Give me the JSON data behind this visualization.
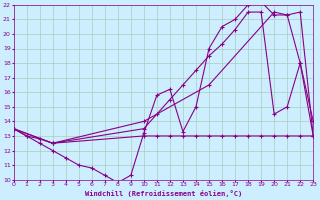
{
  "xlabel": "Windchill (Refroidissement éolien,°C)",
  "bg_color": "#cceeff",
  "grid_color": "#aaccbb",
  "line_color": "#880088",
  "xlim": [
    0,
    23
  ],
  "ylim": [
    10,
    22
  ],
  "xticks": [
    0,
    1,
    2,
    3,
    4,
    5,
    6,
    7,
    8,
    9,
    10,
    11,
    12,
    13,
    14,
    15,
    16,
    17,
    18,
    19,
    20,
    21,
    22,
    23
  ],
  "yticks": [
    10,
    11,
    12,
    13,
    14,
    15,
    16,
    17,
    18,
    19,
    20,
    21,
    22
  ],
  "lines": [
    {
      "x": [
        0,
        1,
        2,
        3,
        4,
        5,
        6,
        7,
        8,
        9,
        10,
        11,
        12,
        13,
        14,
        15,
        16,
        17,
        18,
        19,
        20,
        21,
        22,
        23
      ],
      "y": [
        13.5,
        13.0,
        12.5,
        12.0,
        11.5,
        11.0,
        10.8,
        10.3,
        9.8,
        10.3,
        13.2,
        15.8,
        16.2,
        13.3,
        15.0,
        19.0,
        20.5,
        21.0,
        22.0,
        22.2,
        21.3,
        21.3,
        18.0,
        13.0
      ]
    },
    {
      "x": [
        0,
        1,
        2,
        3,
        10,
        11,
        12,
        13,
        14,
        15,
        16,
        17,
        18,
        19,
        20,
        21,
        22,
        23
      ],
      "y": [
        13.5,
        13.0,
        12.8,
        12.5,
        13.0,
        13.0,
        13.0,
        13.0,
        13.0,
        13.0,
        13.0,
        13.0,
        13.0,
        13.0,
        13.0,
        13.0,
        13.0,
        13.0
      ]
    },
    {
      "x": [
        0,
        3,
        10,
        11,
        12,
        13,
        14,
        15,
        16,
        17,
        18,
        19,
        20,
        21,
        22,
        23
      ],
      "y": [
        13.5,
        12.5,
        13.5,
        14.5,
        15.5,
        16.5,
        17.5,
        18.5,
        19.3,
        20.3,
        21.5,
        21.5,
        14.5,
        15.0,
        18.0,
        14.0
      ]
    },
    {
      "x": [
        0,
        3,
        10,
        15,
        20,
        21,
        22,
        23
      ],
      "y": [
        13.5,
        12.5,
        14.0,
        16.5,
        21.5,
        21.3,
        21.5,
        13.0
      ]
    }
  ]
}
